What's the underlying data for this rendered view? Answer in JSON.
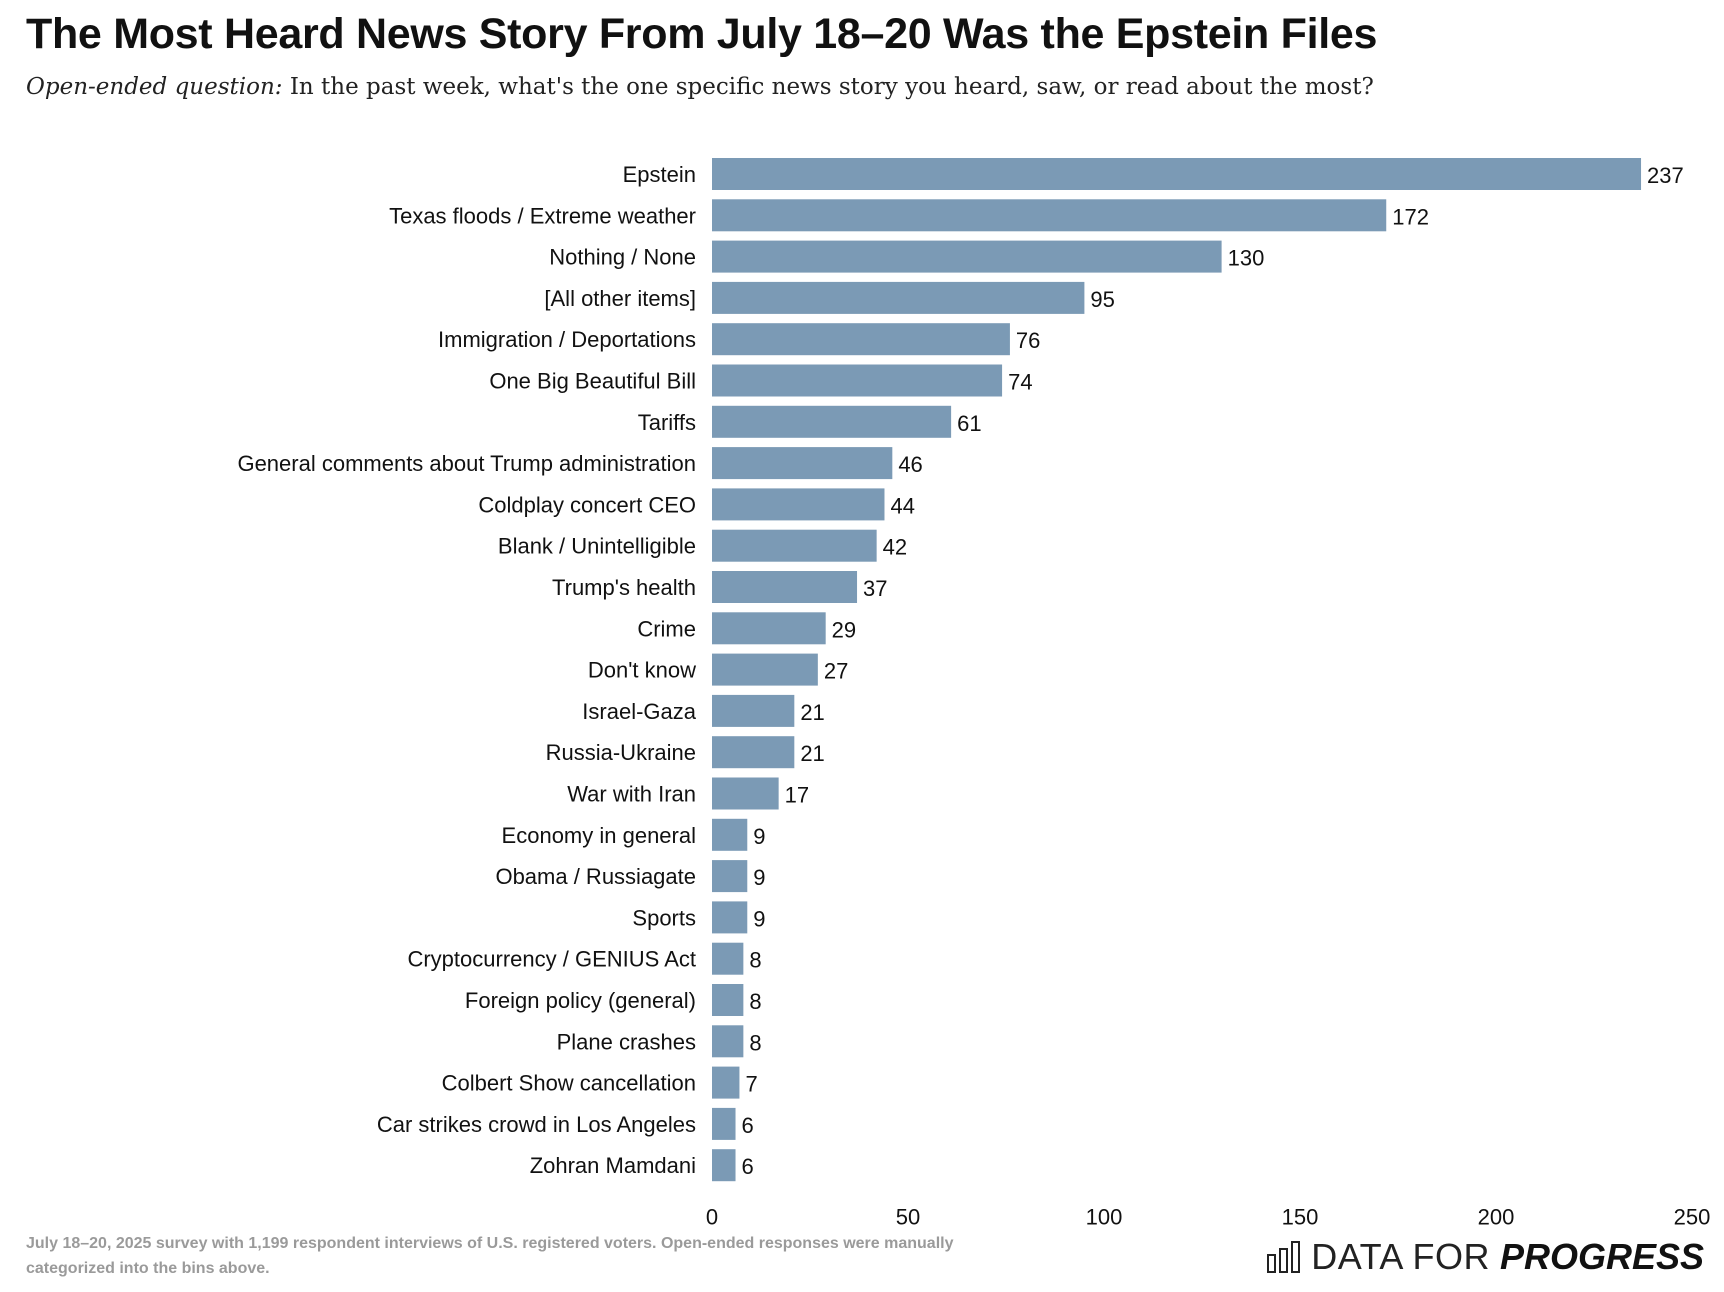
{
  "header": {
    "title": "The Most Heard News Story From July 18–20 Was the Epstein Files",
    "subtitle_lead": "Open-ended question:",
    "subtitle_text": " In the past week, what's the one specific news story you heard, saw, or read about the most?"
  },
  "chart_data": {
    "type": "bar",
    "orientation": "horizontal",
    "categories": [
      "Epstein",
      "Texas floods / Extreme weather",
      "Nothing / None",
      "[All other items]",
      "Immigration / Deportations",
      "One Big Beautiful Bill",
      "Tariffs",
      "General comments about Trump administration",
      "Coldplay concert CEO",
      "Blank / Unintelligible",
      "Trump's health",
      "Crime",
      "Don't know",
      "Israel-Gaza",
      "Russia-Ukraine",
      "War with Iran",
      "Economy in general",
      "Obama / Russiagate",
      "Sports",
      "Cryptocurrency / GENIUS Act",
      "Foreign policy (general)",
      "Plane crashes",
      "Colbert Show cancellation",
      "Car strikes crowd in Los Angeles",
      "Zohran Mamdani"
    ],
    "values": [
      237,
      172,
      130,
      95,
      76,
      74,
      61,
      46,
      44,
      42,
      37,
      29,
      27,
      21,
      21,
      17,
      9,
      9,
      9,
      8,
      8,
      8,
      7,
      6,
      6
    ],
    "xlim": [
      0,
      250
    ],
    "xticks": [
      0,
      50,
      100,
      150,
      200,
      250
    ],
    "bar_color": "#7b9ab5",
    "grid": false
  },
  "footer": {
    "note": "July 18–20, 2025 survey with 1,199 respondent interviews of U.S. registered voters. Open-ended responses were manually categorized into the bins above.",
    "brand_regular": "DATA FOR",
    "brand_bold": "PROGRESS"
  }
}
